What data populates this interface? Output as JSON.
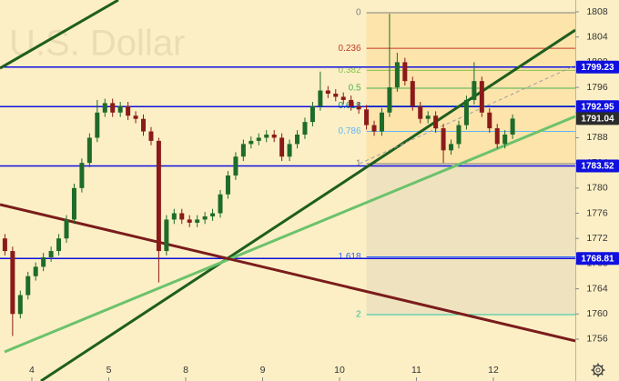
{
  "chart_data": {
    "type": "candlestick",
    "title": "U.S. Dollar",
    "x": [
      -0.35,
      -0.25,
      -0.15,
      -0.05,
      0.05,
      0.15,
      0.25,
      0.35,
      0.45,
      0.55,
      0.65,
      0.75,
      0.85,
      0.95,
      1.05,
      1.15,
      1.25,
      1.35,
      1.45,
      1.55,
      1.65,
      1.75,
      1.85,
      1.95,
      2.05,
      2.15,
      2.25,
      2.35,
      2.45,
      2.55,
      2.65,
      2.75,
      2.85,
      2.95,
      3.05,
      3.15,
      3.25,
      3.35,
      3.45,
      3.55,
      3.65,
      3.75,
      3.85,
      3.95,
      4.05,
      4.15,
      4.25,
      4.35,
      4.45,
      4.55,
      4.65,
      4.75,
      4.85,
      4.95,
      5.05,
      5.15,
      5.25,
      5.35,
      5.45,
      5.55,
      5.65,
      5.75,
      5.85,
      5.95,
      6.05,
      6.15,
      6.25
    ],
    "open": [
      1772,
      1770,
      1760,
      1763,
      1766,
      1767.5,
      1769,
      1770,
      1772,
      1775,
      1780,
      1784,
      1788,
      1792,
      1793.5,
      1792,
      1793,
      1791.5,
      1791,
      1789,
      1787.5,
      1770,
      1775,
      1776,
      1775,
      1774.5,
      1775,
      1775.5,
      1776,
      1779,
      1782,
      1785,
      1787,
      1787.5,
      1788,
      1788.5,
      1788,
      1785,
      1787,
      1788.5,
      1790.5,
      1793,
      1795.5,
      1795,
      1794.5,
      1794,
      1793,
      1792.5,
      1790,
      1789,
      1792,
      1796,
      1800,
      1797,
      1793,
      1791,
      1791.5,
      1789.5,
      1786,
      1787,
      1790,
      1794,
      1797,
      1792,
      1789.5,
      1787,
      1788.5
    ],
    "high": [
      1772.7,
      1770.7,
      1763.7,
      1766.7,
      1768.2,
      1769.7,
      1770.7,
      1772.7,
      1775.7,
      1780.7,
      1784.7,
      1788.7,
      1794,
      1794.2,
      1794.2,
      1793.7,
      1793.7,
      1792.2,
      1791.7,
      1789.7,
      1788,
      1775.7,
      1776.7,
      1776.7,
      1775.7,
      1775.7,
      1776.2,
      1776.7,
      1779.7,
      1782.7,
      1785.7,
      1787.7,
      1788.2,
      1788.7,
      1789.2,
      1789.2,
      1788.7,
      1787.7,
      1789.2,
      1791.2,
      1793.7,
      1798.5,
      1796.2,
      1795.7,
      1795.2,
      1794.7,
      1793.7,
      1793.2,
      1790.7,
      1792.7,
      1807.7,
      1801.5,
      1800.7,
      1797.7,
      1793.7,
      1792.2,
      1792.2,
      1790.2,
      1787.7,
      1790.7,
      1794.7,
      1800,
      1797.7,
      1792.7,
      1790.2,
      1789.2,
      1791.7
    ],
    "low": [
      1769.3,
      1756.5,
      1759.3,
      1762.3,
      1765.3,
      1766.8,
      1768.3,
      1769.3,
      1771.3,
      1774.3,
      1779.3,
      1783.3,
      1787.3,
      1791.3,
      1791.3,
      1791.3,
      1790.8,
      1790.3,
      1788.3,
      1786.8,
      1765,
      1769.3,
      1774.3,
      1774.3,
      1773.8,
      1773.8,
      1774.3,
      1774.8,
      1775.3,
      1778.3,
      1781.3,
      1784.3,
      1786.3,
      1786.8,
      1787.3,
      1787.3,
      1784.3,
      1784.3,
      1786.3,
      1787.8,
      1789.8,
      1792.3,
      1794.3,
      1793.8,
      1793.3,
      1792.3,
      1791.8,
      1789.3,
      1788.3,
      1788.3,
      1791.3,
      1795.3,
      1796.3,
      1792.3,
      1790.3,
      1790.3,
      1788.8,
      1784,
      1785.3,
      1786.3,
      1789.3,
      1793.3,
      1791.3,
      1788.8,
      1786.3,
      1786.3,
      1787.8
    ],
    "close": [
      1770,
      1760,
      1763,
      1766,
      1767.5,
      1769,
      1770,
      1772,
      1775,
      1780,
      1784,
      1788,
      1792,
      1793.5,
      1792,
      1793,
      1791.5,
      1791,
      1789,
      1787.5,
      1770,
      1775,
      1776,
      1775,
      1774.5,
      1775,
      1775.5,
      1776,
      1779,
      1782,
      1785,
      1787,
      1787.5,
      1788,
      1788.5,
      1788,
      1785,
      1787,
      1788.5,
      1790.5,
      1793,
      1795.5,
      1795,
      1794.5,
      1794,
      1793,
      1792.5,
      1790,
      1789,
      1792,
      1796,
      1800,
      1797,
      1793,
      1791,
      1791.5,
      1789.5,
      1786,
      1787,
      1790,
      1794,
      1797,
      1792,
      1789.5,
      1787,
      1788.5,
      1791.04
    ],
    "up_color": "#1e6b2a",
    "down_color": "#8b1a1a",
    "xlim": [
      -0.414,
      7.065
    ],
    "ylim": [
      1749.35,
      1809.88
    ],
    "xticks": [
      {
        "value": 0,
        "label": "4"
      },
      {
        "value": 1,
        "label": "5"
      },
      {
        "value": 2,
        "label": "8"
      },
      {
        "value": 3,
        "label": "9"
      },
      {
        "value": 4,
        "label": "10"
      },
      {
        "value": 5,
        "label": "11"
      },
      {
        "value": 6,
        "label": "12"
      }
    ],
    "yticks": [
      1756,
      1760,
      1764,
      1768,
      1772,
      1776,
      1780,
      1784,
      1788,
      1792,
      1796,
      1800,
      1804,
      1808
    ],
    "price_lines": [
      {
        "value": 1799.23,
        "color": "#1010e0"
      },
      {
        "value": 1792.95,
        "color": "#1010e0"
      },
      {
        "value": 1783.52,
        "color": "#1010e0"
      },
      {
        "value": 1768.81,
        "color": "#1010e0"
      }
    ],
    "current_price": {
      "value": 1791.04,
      "color": "#2b2b2b"
    },
    "trend_lines": [
      {
        "color": "#1f5e1f",
        "points": [
          [
            -0.414,
            1799.04
          ],
          [
            1.124,
            1809.88
          ]
        ]
      },
      {
        "color": "#1f5e1f",
        "points": [
          [
            0.118,
            1749.35
          ],
          [
            7.065,
            1805.11
          ]
        ]
      },
      {
        "color": "#6cc26c",
        "points": [
          [
            -0.355,
            1753.98
          ],
          [
            7.065,
            1791.39
          ]
        ]
      },
      {
        "color": "#7a1c1c",
        "points": [
          [
            -0.414,
            1777.38
          ],
          [
            7.065,
            1755.71
          ]
        ]
      },
      {
        "color": "#a0a0a0",
        "dashed": true,
        "points": [
          [
            4.26,
            1783.88
          ],
          [
            7.065,
            1799.48
          ]
        ]
      }
    ],
    "fib": {
      "x": [
        4.35,
        7.065
      ],
      "from": 1807.86,
      "to": 1783.88,
      "levels": [
        0,
        0.236,
        0.382,
        0.5,
        0.618,
        0.786,
        1,
        1.618,
        2
      ],
      "colors": [
        "#808080",
        "#c0392b",
        "#8bc34a",
        "#4caf50",
        "#009688",
        "#64b5f6",
        "#808080",
        "#2962ff",
        "#26c6a0"
      ]
    }
  }
}
